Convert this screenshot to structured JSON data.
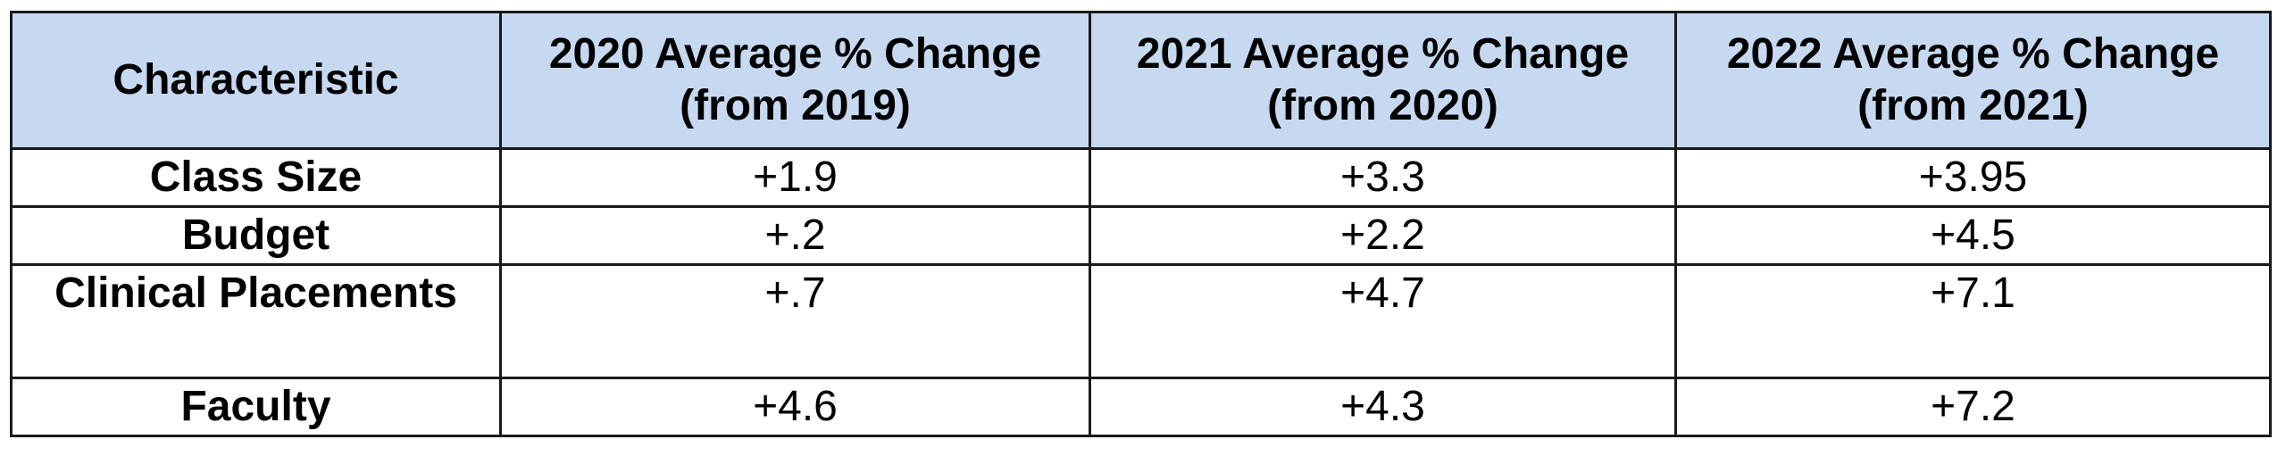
{
  "table": {
    "headers": [
      "Characteristic",
      "2020 Average % Change (from 2019)",
      "2021 Average % Change (from 2020)",
      "2022 Average % Change (from 2021)"
    ],
    "rows": [
      [
        "Class Size",
        "+1.9",
        "+3.3",
        "+3.95"
      ],
      [
        "Budget",
        "+.2",
        "+2.2",
        "+4.5"
      ],
      [
        "Clinical Placements",
        "+.7",
        "+4.7",
        "+7.1"
      ],
      [
        "Faculty",
        "+4.6",
        "+4.3",
        "+7.2"
      ]
    ]
  },
  "colors": {
    "header_background": "#c6d9f1",
    "border": "#1a1a1a"
  }
}
